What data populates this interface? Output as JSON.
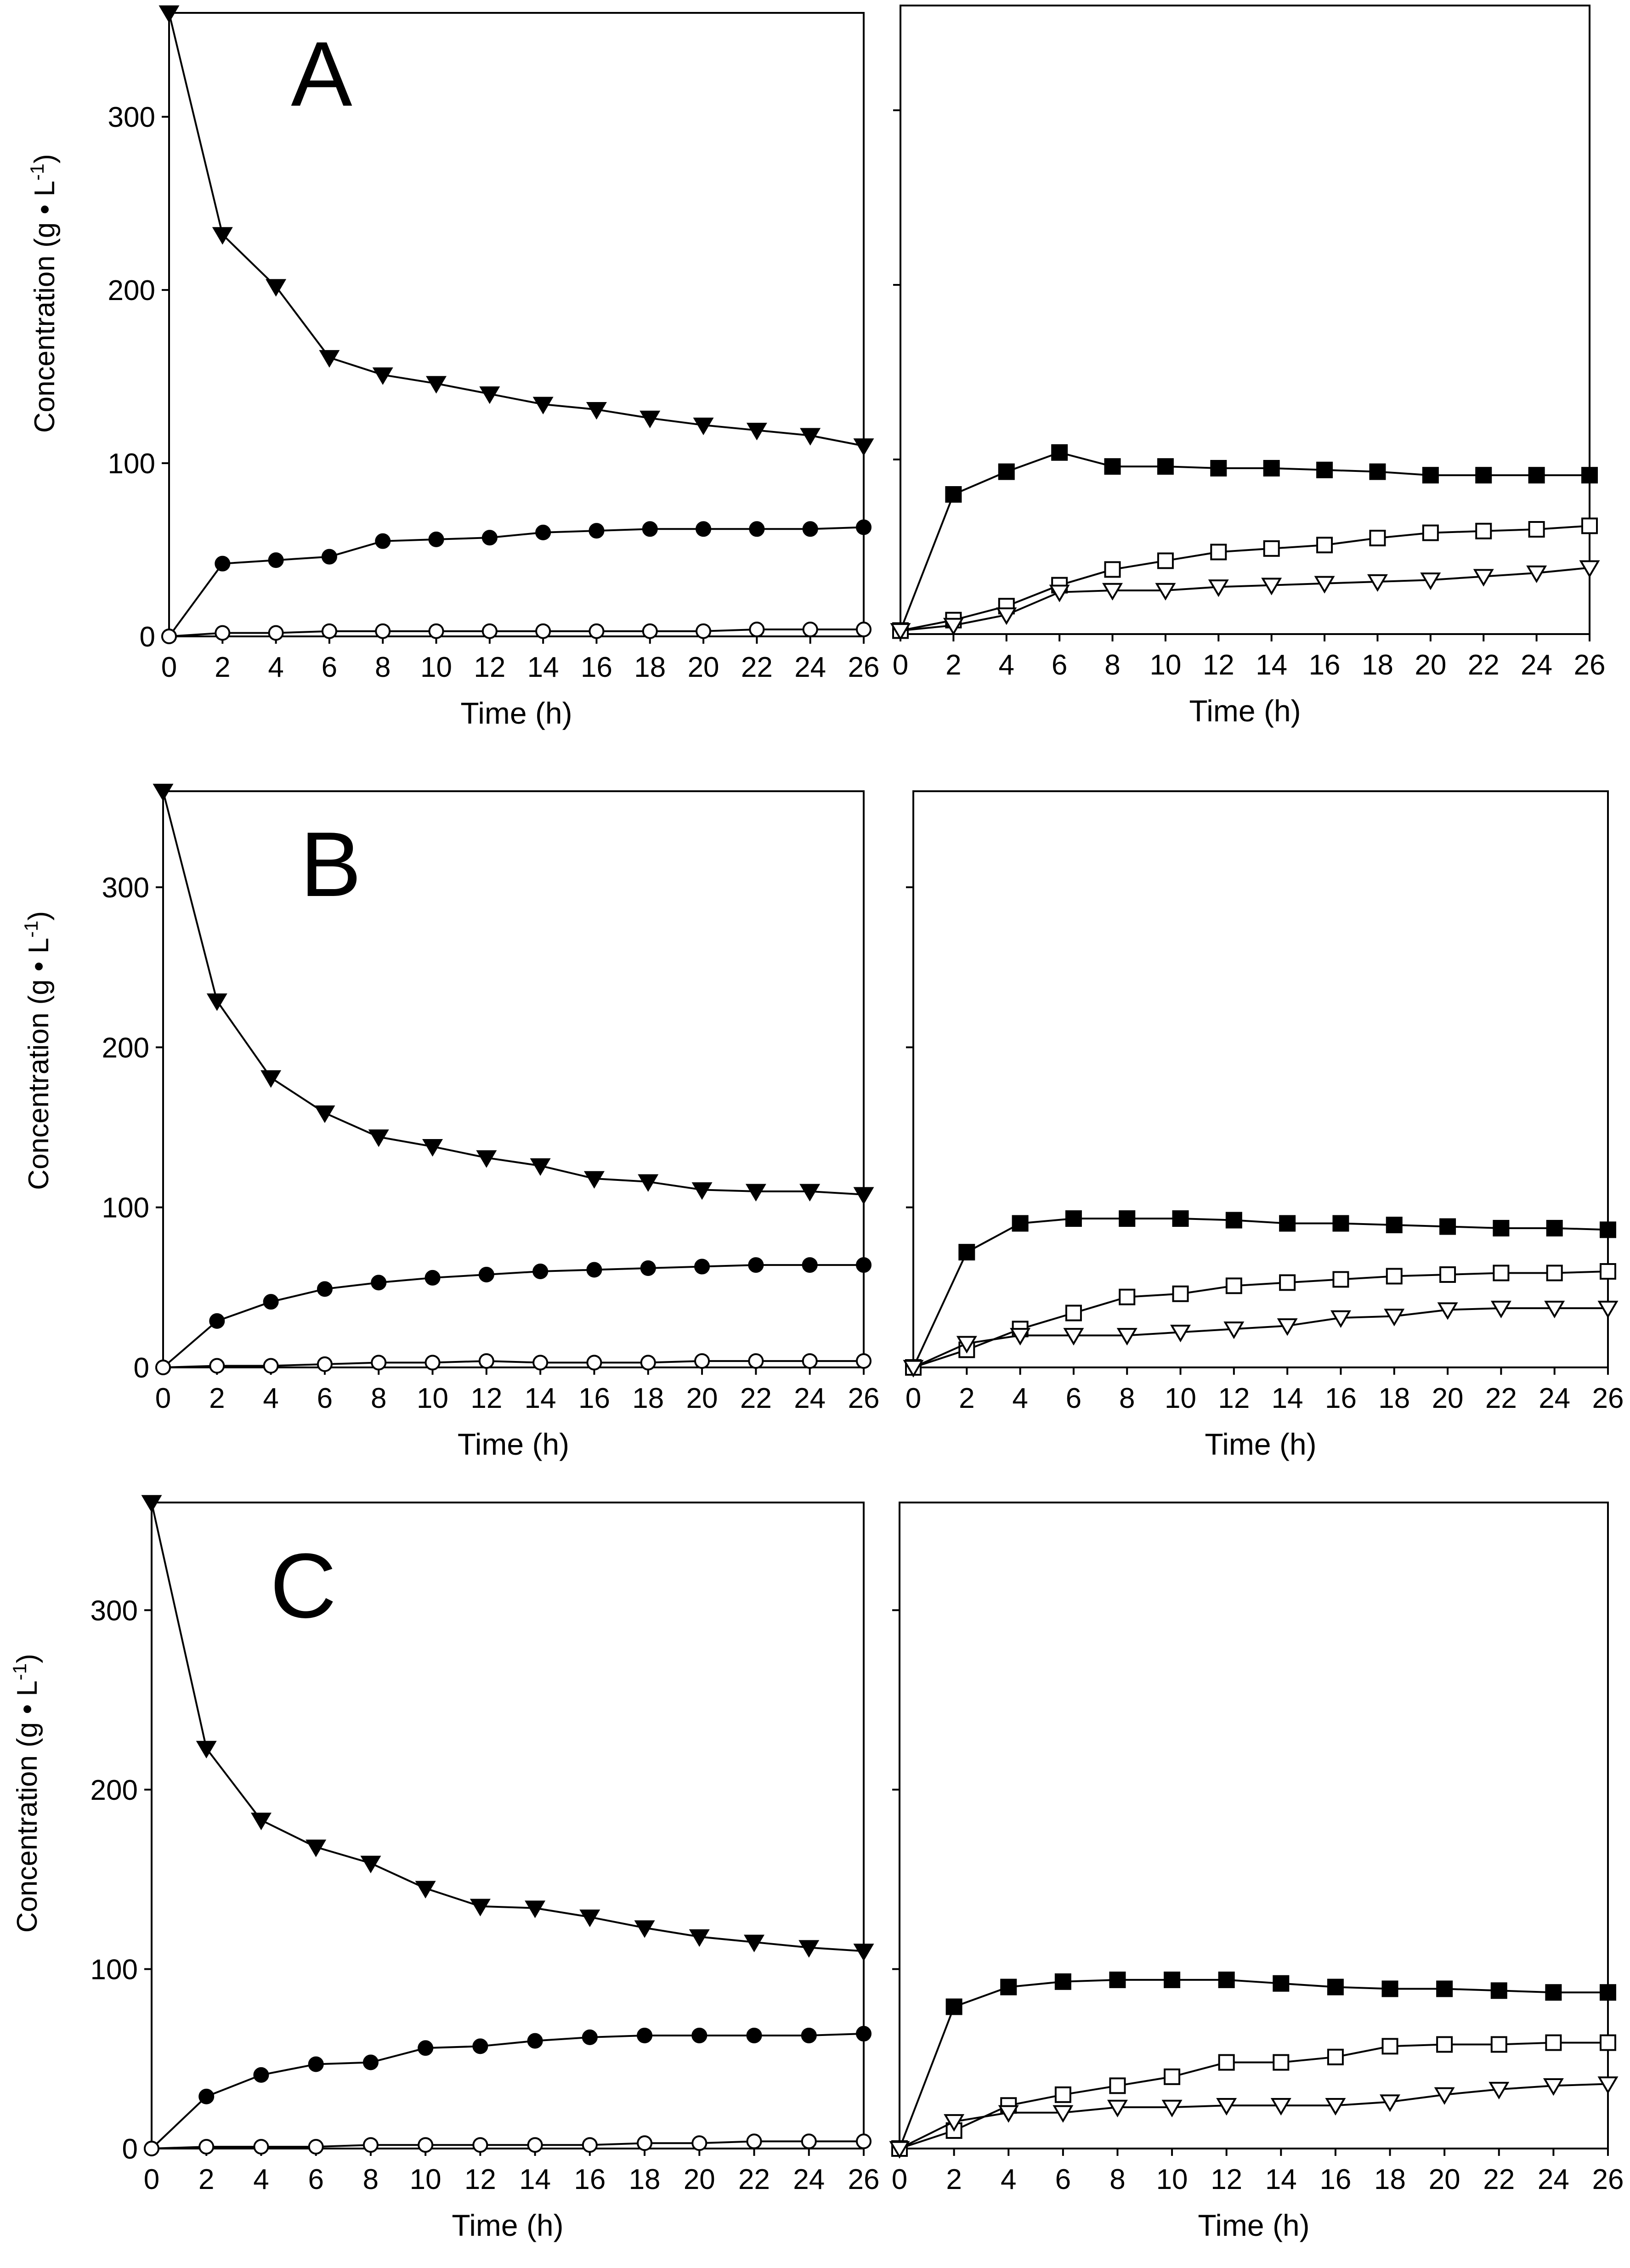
{
  "figure": {
    "description_labels": [
      "A",
      "B",
      "C"
    ]
  },
  "chart_data": [
    {
      "type": "line",
      "panel": "A",
      "side": "left",
      "panel_label": "A",
      "xlabel": "Time (h)",
      "ylabel_main": "Concentration (g • L",
      "ylabel_sup": "-1",
      "ylabel_close": ")",
      "xlim": [
        0,
        26
      ],
      "ylim": [
        0,
        360
      ],
      "xticks": [
        0,
        2,
        4,
        6,
        8,
        10,
        12,
        14,
        16,
        18,
        20,
        22,
        24,
        26
      ],
      "yticks": [
        0,
        100,
        200,
        300
      ],
      "x": [
        0,
        2,
        4,
        6,
        8,
        10,
        12,
        14,
        16,
        18,
        20,
        22,
        24,
        26
      ],
      "series": [
        {
          "name": "filled-triangle-down",
          "marker": "triangle-down",
          "fill": "#000000",
          "values": [
            360,
            232,
            202,
            161,
            151,
            146,
            140,
            134,
            131,
            126,
            122,
            119,
            116,
            110
          ]
        },
        {
          "name": "filled-circle",
          "marker": "circle",
          "fill": "#000000",
          "values": [
            0,
            42,
            44,
            46,
            55,
            56,
            57,
            60,
            61,
            62,
            62,
            62,
            62,
            63
          ]
        },
        {
          "name": "open-circle",
          "marker": "circle",
          "fill": "#ffffff",
          "values": [
            0,
            2,
            2,
            3,
            3,
            3,
            3,
            3,
            3,
            3,
            3,
            4,
            4,
            4
          ]
        }
      ]
    },
    {
      "type": "line",
      "panel": "A",
      "side": "right",
      "xlabel": "Time (h)",
      "xlim": [
        0,
        26
      ],
      "ylim": [
        0,
        360
      ],
      "xticks": [
        0,
        2,
        4,
        6,
        8,
        10,
        12,
        14,
        16,
        18,
        20,
        22,
        24,
        26
      ],
      "yticks": [
        0,
        100,
        200,
        300
      ],
      "x": [
        0,
        2,
        4,
        6,
        8,
        10,
        12,
        14,
        16,
        18,
        20,
        22,
        24,
        26
      ],
      "series": [
        {
          "name": "filled-square",
          "marker": "square",
          "fill": "#000000",
          "values": [
            2,
            80,
            93,
            104,
            96,
            96,
            95,
            95,
            94,
            93,
            91,
            91,
            91,
            91
          ]
        },
        {
          "name": "open-square",
          "marker": "square",
          "fill": "#ffffff",
          "values": [
            2,
            8,
            16,
            28,
            37,
            42,
            47,
            49,
            51,
            55,
            58,
            59,
            60,
            62
          ]
        },
        {
          "name": "open-triangle-down",
          "marker": "triangle-down",
          "fill": "#ffffff",
          "values": [
            2,
            5,
            11,
            24,
            25,
            25,
            27,
            28,
            29,
            30,
            31,
            33,
            35,
            38
          ]
        }
      ]
    },
    {
      "type": "line",
      "panel": "B",
      "side": "left",
      "panel_label": "B",
      "xlabel": "Time (h)",
      "ylabel_main": "Concentration (g • L",
      "ylabel_sup": "-1",
      "ylabel_close": ")",
      "xlim": [
        0,
        26
      ],
      "ylim": [
        0,
        360
      ],
      "xticks": [
        0,
        2,
        4,
        6,
        8,
        10,
        12,
        14,
        16,
        18,
        20,
        22,
        24,
        26
      ],
      "yticks": [
        0,
        100,
        200,
        300
      ],
      "x": [
        0,
        2,
        4,
        6,
        8,
        10,
        12,
        14,
        16,
        18,
        20,
        22,
        24,
        26
      ],
      "series": [
        {
          "name": "filled-triangle-down",
          "marker": "triangle-down",
          "fill": "#000000",
          "values": [
            360,
            229,
            181,
            159,
            144,
            138,
            131,
            126,
            118,
            116,
            111,
            110,
            110,
            108
          ]
        },
        {
          "name": "filled-circle",
          "marker": "circle",
          "fill": "#000000",
          "values": [
            0,
            29,
            41,
            49,
            53,
            56,
            58,
            60,
            61,
            62,
            63,
            64,
            64,
            64
          ]
        },
        {
          "name": "open-circle",
          "marker": "circle",
          "fill": "#ffffff",
          "values": [
            0,
            1,
            1,
            2,
            3,
            3,
            4,
            3,
            3,
            3,
            4,
            4,
            4,
            4
          ]
        }
      ]
    },
    {
      "type": "line",
      "panel": "B",
      "side": "right",
      "xlabel": "Time (h)",
      "xlim": [
        0,
        26
      ],
      "ylim": [
        0,
        360
      ],
      "xticks": [
        0,
        2,
        4,
        6,
        8,
        10,
        12,
        14,
        16,
        18,
        20,
        22,
        24,
        26
      ],
      "yticks": [
        0,
        100,
        200,
        300
      ],
      "x": [
        0,
        2,
        4,
        6,
        8,
        10,
        12,
        14,
        16,
        18,
        20,
        22,
        24,
        26
      ],
      "series": [
        {
          "name": "filled-square",
          "marker": "square",
          "fill": "#000000",
          "values": [
            0,
            72,
            90,
            93,
            93,
            93,
            92,
            90,
            90,
            89,
            88,
            87,
            87,
            86
          ]
        },
        {
          "name": "open-square",
          "marker": "square",
          "fill": "#ffffff",
          "values": [
            0,
            11,
            24,
            34,
            44,
            46,
            51,
            53,
            55,
            57,
            58,
            59,
            59,
            60
          ]
        },
        {
          "name": "open-triangle-down",
          "marker": "triangle-down",
          "fill": "#ffffff",
          "values": [
            0,
            15,
            20,
            20,
            20,
            22,
            24,
            26,
            31,
            32,
            36,
            37,
            37,
            37
          ]
        }
      ]
    },
    {
      "type": "line",
      "panel": "C",
      "side": "left",
      "panel_label": "C",
      "xlabel": "Time (h)",
      "ylabel_main": "Concentration (g • L",
      "ylabel_sup": "-1",
      "ylabel_close": ")",
      "xlim": [
        0,
        26
      ],
      "ylim": [
        0,
        360
      ],
      "xticks": [
        0,
        2,
        4,
        6,
        8,
        10,
        12,
        14,
        16,
        18,
        20,
        22,
        24,
        26
      ],
      "yticks": [
        0,
        100,
        200,
        300
      ],
      "x": [
        0,
        2,
        4,
        6,
        8,
        10,
        12,
        14,
        16,
        18,
        20,
        22,
        24,
        26
      ],
      "series": [
        {
          "name": "filled-triangle-down",
          "marker": "triangle-down",
          "fill": "#000000",
          "values": [
            360,
            223,
            183,
            168,
            159,
            145,
            135,
            134,
            129,
            123,
            118,
            115,
            112,
            110
          ]
        },
        {
          "name": "filled-circle",
          "marker": "circle",
          "fill": "#000000",
          "values": [
            0,
            29,
            41,
            47,
            48,
            56,
            57,
            60,
            62,
            63,
            63,
            63,
            63,
            64
          ]
        },
        {
          "name": "open-circle",
          "marker": "circle",
          "fill": "#ffffff",
          "values": [
            0,
            1,
            1,
            1,
            2,
            2,
            2,
            2,
            2,
            3,
            3,
            4,
            4,
            4
          ]
        }
      ]
    },
    {
      "type": "line",
      "panel": "C",
      "side": "right",
      "xlabel": "Time (h)",
      "xlim": [
        0,
        26
      ],
      "ylim": [
        0,
        360
      ],
      "xticks": [
        0,
        2,
        4,
        6,
        8,
        10,
        12,
        14,
        16,
        18,
        20,
        22,
        24,
        26
      ],
      "yticks": [
        0,
        100,
        200,
        300
      ],
      "x": [
        0,
        2,
        4,
        6,
        8,
        10,
        12,
        14,
        16,
        18,
        20,
        22,
        24,
        26
      ],
      "series": [
        {
          "name": "filled-square",
          "marker": "square",
          "fill": "#000000",
          "values": [
            0,
            79,
            90,
            93,
            94,
            94,
            94,
            92,
            90,
            89,
            89,
            88,
            87,
            87
          ]
        },
        {
          "name": "open-square",
          "marker": "square",
          "fill": "#ffffff",
          "values": [
            0,
            10,
            24,
            30,
            35,
            40,
            48,
            48,
            51,
            57,
            58,
            58,
            59,
            59
          ]
        },
        {
          "name": "open-triangle-down",
          "marker": "triangle-down",
          "fill": "#ffffff",
          "values": [
            0,
            15,
            20,
            20,
            23,
            23,
            24,
            24,
            24,
            26,
            30,
            33,
            35,
            36
          ]
        }
      ]
    }
  ]
}
